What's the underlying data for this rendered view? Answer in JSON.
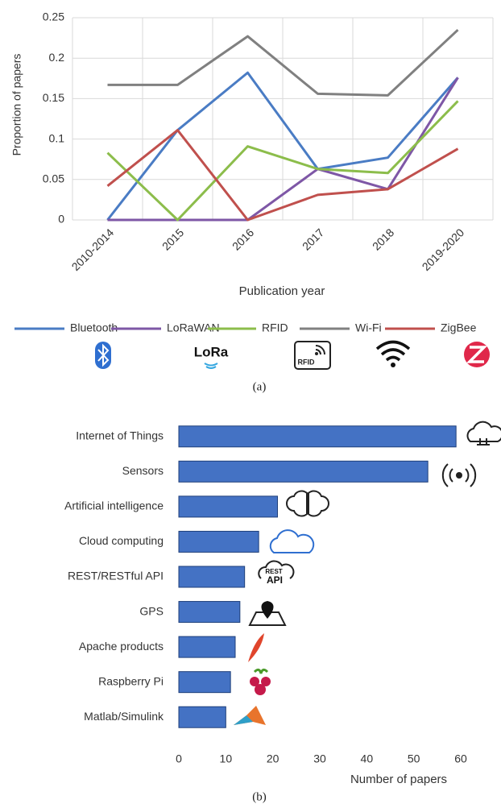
{
  "chart_data": [
    {
      "type": "line",
      "x_label": "Publication year",
      "y_label": "Proportion of papers",
      "caption": "(a)",
      "categories": [
        "2010-2014",
        "2015",
        "2016",
        "2017",
        "2018",
        "2019-2020"
      ],
      "ylim": [
        0,
        0.25
      ],
      "yticks": [
        0,
        0.05,
        0.1,
        0.15,
        0.2,
        0.25
      ],
      "grid": true,
      "legend": "bottom",
      "icon_texts": [
        "LoRa",
        "RFID"
      ],
      "series": [
        {
          "name": "Bluetooth",
          "color": "#4a7cc4",
          "values": [
            0,
            0.111,
            0.182,
            0.063,
            0.077,
            0.176
          ]
        },
        {
          "name": "LoRaWAN",
          "color": "#7e57a6",
          "values": [
            0,
            0,
            0,
            0.063,
            0.038,
            0.176
          ]
        },
        {
          "name": "RFID",
          "color": "#8cbd4b",
          "values": [
            0.083,
            0,
            0.091,
            0.063,
            0.058,
            0.147
          ]
        },
        {
          "name": "Wi-Fi",
          "color": "#808080",
          "values": [
            0.167,
            0.167,
            0.227,
            0.156,
            0.154,
            0.235
          ]
        },
        {
          "name": "ZigBee",
          "color": "#c0504d",
          "values": [
            0.042,
            0.111,
            0,
            0.031,
            0.038,
            0.088
          ]
        }
      ]
    },
    {
      "type": "barh",
      "x_label": "Number of papers",
      "caption": "(b)",
      "categories": [
        "Internet of Things",
        "Sensors",
        "Artificial intelligence",
        "Cloud computing",
        "REST/RESTful API",
        "GPS",
        "Apache products",
        "Raspberry Pi",
        "Matlab/Simulink"
      ],
      "values": [
        59,
        53,
        21,
        17,
        14,
        13,
        12,
        11,
        10
      ],
      "color": "#4472c4",
      "xlim": [
        0,
        60
      ],
      "xticks": [
        0,
        10,
        20,
        30,
        40,
        50,
        60
      ],
      "icon_texts": [
        "REST",
        "API"
      ]
    }
  ]
}
